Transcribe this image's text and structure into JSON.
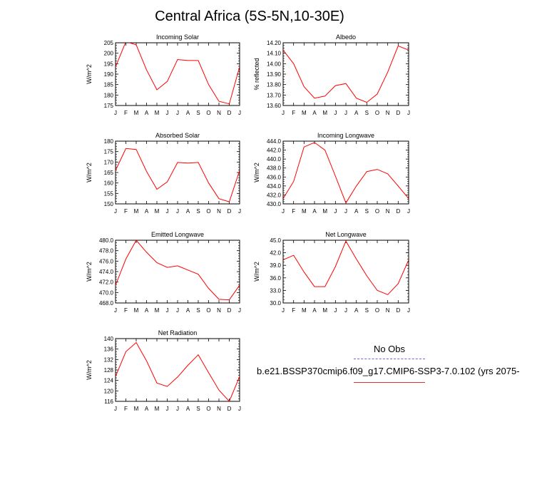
{
  "figure_title": "Central Africa (5S-5N,10-30E)",
  "legend": {
    "obs_label": "No Obs",
    "obs_color": "#6666ee",
    "case_label": "b.e21.BSSP370cmip6.f09_g17.CMIP6-SSP3-7.0.102 (yrs 2075-",
    "case_color": "#ff0000"
  },
  "chart_data": [
    {
      "type": "line",
      "title": "Incoming Solar",
      "ylabel": "W/m^2",
      "categories": [
        "J",
        "F",
        "M",
        "A",
        "M",
        "J",
        "J",
        "A",
        "S",
        "O",
        "N",
        "D",
        "J"
      ],
      "ylim": [
        175,
        205
      ],
      "yticks": [
        "175",
        "180",
        "185",
        "190",
        "195",
        "200",
        "205"
      ],
      "series": [
        {
          "values": [
            193.5,
            205.5,
            204.0,
            192.0,
            182.5,
            186.5,
            197.0,
            196.5,
            196.5,
            185.0,
            177.0,
            175.8,
            193.5
          ]
        }
      ]
    },
    {
      "type": "line",
      "title": "Albedo",
      "ylabel": "% reflected",
      "categories": [
        "J",
        "F",
        "M",
        "A",
        "M",
        "J",
        "J",
        "A",
        "S",
        "O",
        "N",
        "D",
        "J"
      ],
      "ylim": [
        13.6,
        14.2
      ],
      "yticks": [
        "13.60",
        "13.70",
        "13.80",
        "13.90",
        "14.00",
        "14.10",
        "14.20"
      ],
      "series": [
        {
          "values": [
            14.13,
            14.0,
            13.78,
            13.67,
            13.69,
            13.79,
            13.81,
            13.67,
            13.63,
            13.71,
            13.92,
            14.17,
            14.13
          ]
        }
      ]
    },
    {
      "type": "line",
      "title": "Absorbed Solar",
      "ylabel": "W/m^2",
      "categories": [
        "J",
        "F",
        "M",
        "A",
        "M",
        "J",
        "J",
        "A",
        "S",
        "O",
        "N",
        "D",
        "J"
      ],
      "ylim": [
        150,
        180
      ],
      "yticks": [
        "150",
        "155",
        "160",
        "165",
        "170",
        "175",
        "180"
      ],
      "series": [
        {
          "values": [
            166.0,
            176.5,
            176.0,
            165.5,
            157.0,
            160.5,
            169.8,
            169.5,
            169.8,
            160.0,
            152.5,
            151.0,
            166.0
          ]
        }
      ]
    },
    {
      "type": "line",
      "title": "Incoming Longwave",
      "ylabel": "W/m^2",
      "categories": [
        "J",
        "F",
        "M",
        "A",
        "M",
        "J",
        "J",
        "A",
        "S",
        "O",
        "N",
        "D",
        "J"
      ],
      "ylim": [
        430,
        444
      ],
      "yticks": [
        "430.0",
        "432.0",
        "434.0",
        "436.0",
        "438.0",
        "440.0",
        "442.0",
        "444.0"
      ],
      "series": [
        {
          "values": [
            431.2,
            435.0,
            442.7,
            443.7,
            442.0,
            436.2,
            430.2,
            434.0,
            437.2,
            437.7,
            436.7,
            434.0,
            431.2
          ]
        }
      ]
    },
    {
      "type": "line",
      "title": "Emitted Longwave",
      "ylabel": "W/m^2",
      "categories": [
        "J",
        "F",
        "M",
        "A",
        "M",
        "J",
        "J",
        "A",
        "S",
        "O",
        "N",
        "D",
        "J"
      ],
      "ylim": [
        468,
        480
      ],
      "yticks": [
        "468.0",
        "470.0",
        "472.0",
        "474.0",
        "476.0",
        "478.0",
        "480.0"
      ],
      "series": [
        {
          "values": [
            471.4,
            476.4,
            480.0,
            477.7,
            475.7,
            474.8,
            475.1,
            474.3,
            473.5,
            470.8,
            468.7,
            468.6,
            471.4
          ]
        }
      ]
    },
    {
      "type": "line",
      "title": "Net Longwave",
      "ylabel": "W/m^2",
      "categories": [
        "J",
        "F",
        "M",
        "A",
        "M",
        "J",
        "J",
        "A",
        "S",
        "O",
        "N",
        "D",
        "J"
      ],
      "ylim": [
        30,
        45
      ],
      "yticks": [
        "30.0",
        "33.0",
        "36.0",
        "39.0",
        "42.0",
        "45.0"
      ],
      "series": [
        {
          "values": [
            40.3,
            41.4,
            37.4,
            33.9,
            33.9,
            38.7,
            44.8,
            40.5,
            36.5,
            33.0,
            32.0,
            34.6,
            40.3
          ]
        }
      ]
    },
    {
      "type": "line",
      "title": "Net Radiation",
      "ylabel": "W/m^2",
      "categories": [
        "J",
        "F",
        "M",
        "A",
        "M",
        "J",
        "J",
        "A",
        "S",
        "O",
        "N",
        "D",
        "J"
      ],
      "ylim": [
        116,
        140
      ],
      "yticks": [
        "116",
        "120",
        "124",
        "128",
        "132",
        "136",
        "140"
      ],
      "series": [
        {
          "values": [
            125.5,
            135.0,
            138.5,
            131.5,
            123.0,
            121.7,
            125.3,
            129.8,
            133.8,
            127.0,
            120.3,
            116.0,
            125.5
          ]
        }
      ]
    }
  ]
}
